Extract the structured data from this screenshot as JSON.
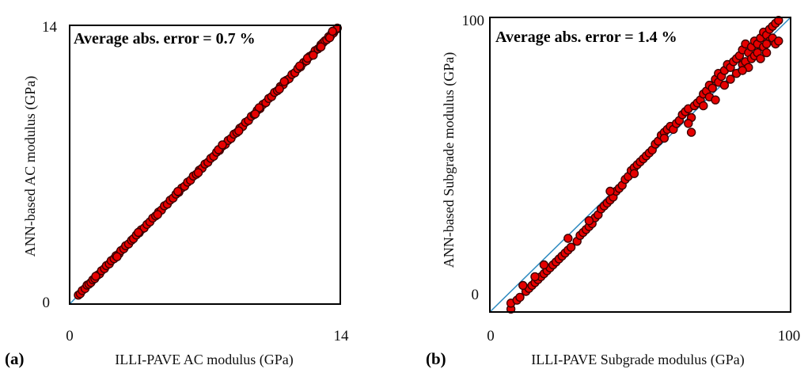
{
  "chart_data": [
    {
      "type": "scatter",
      "panel_label": "(a)",
      "annotation": "Average abs. error = 0.7 %",
      "xlabel": "ILLI-PAVE AC modulus (GPa)",
      "ylabel": "ANN-based AC modulus (GPa)",
      "xlim": [
        0,
        14
      ],
      "ylim": [
        0,
        14
      ],
      "x_ticks": [
        "0",
        "14"
      ],
      "y_ticks": [
        "0",
        "14"
      ],
      "reference_line": "y = x",
      "colors": {
        "points": "#e60000",
        "point_edge": "#3a0000",
        "line": "#2e8bc0",
        "frame": "#000000"
      },
      "series": [
        {
          "points": [
            [
              0.45,
              0.45
            ],
            [
              0.55,
              0.52
            ],
            [
              0.65,
              0.68
            ],
            [
              0.8,
              0.78
            ],
            [
              0.9,
              0.95
            ],
            [
              1.0,
              1.0
            ],
            [
              1.1,
              1.08
            ],
            [
              1.2,
              1.22
            ],
            [
              1.3,
              1.28
            ],
            [
              1.45,
              1.45
            ],
            [
              1.55,
              1.52
            ],
            [
              1.65,
              1.68
            ],
            [
              1.8,
              1.78
            ],
            [
              1.9,
              1.93
            ],
            [
              2.05,
              2.02
            ],
            [
              2.15,
              2.18
            ],
            [
              2.3,
              2.28
            ],
            [
              2.4,
              2.43
            ],
            [
              2.55,
              2.52
            ],
            [
              2.65,
              2.68
            ],
            [
              2.8,
              2.78
            ],
            [
              2.9,
              2.93
            ],
            [
              3.05,
              3.02
            ],
            [
              3.2,
              3.2
            ],
            [
              3.3,
              3.28
            ],
            [
              3.45,
              3.47
            ],
            [
              3.6,
              3.58
            ],
            [
              3.7,
              3.73
            ],
            [
              3.85,
              3.82
            ],
            [
              4.0,
              4.0
            ],
            [
              4.15,
              4.13
            ],
            [
              4.3,
              4.32
            ],
            [
              4.45,
              4.43
            ],
            [
              4.6,
              4.62
            ],
            [
              4.75,
              4.72
            ],
            [
              4.9,
              4.93
            ],
            [
              5.05,
              5.02
            ],
            [
              5.2,
              5.22
            ],
            [
              5.35,
              5.32
            ],
            [
              5.5,
              5.52
            ],
            [
              5.65,
              5.62
            ],
            [
              5.8,
              5.83
            ],
            [
              5.95,
              5.92
            ],
            [
              6.1,
              6.12
            ],
            [
              6.25,
              6.22
            ],
            [
              6.4,
              6.43
            ],
            [
              6.55,
              6.52
            ],
            [
              6.7,
              6.72
            ],
            [
              6.85,
              6.82
            ],
            [
              7.0,
              7.03
            ],
            [
              7.15,
              7.12
            ],
            [
              7.3,
              7.32
            ],
            [
              7.45,
              7.42
            ],
            [
              7.6,
              7.63
            ],
            [
              7.75,
              7.72
            ],
            [
              7.9,
              7.93
            ],
            [
              8.05,
              8.02
            ],
            [
              8.2,
              8.22
            ],
            [
              8.35,
              8.32
            ],
            [
              8.5,
              8.53
            ],
            [
              8.65,
              8.62
            ],
            [
              8.8,
              8.83
            ],
            [
              8.95,
              8.92
            ],
            [
              9.1,
              9.13
            ],
            [
              9.25,
              9.22
            ],
            [
              9.4,
              9.43
            ],
            [
              9.55,
              9.52
            ],
            [
              9.7,
              9.73
            ],
            [
              9.85,
              9.82
            ],
            [
              10.0,
              10.03
            ],
            [
              10.15,
              10.12
            ],
            [
              10.3,
              10.33
            ],
            [
              10.45,
              10.42
            ],
            [
              10.6,
              10.63
            ],
            [
              10.75,
              10.72
            ],
            [
              10.9,
              10.93
            ],
            [
              11.05,
              11.02
            ],
            [
              11.2,
              11.23
            ],
            [
              11.35,
              11.32
            ],
            [
              11.5,
              11.53
            ],
            [
              11.65,
              11.62
            ],
            [
              11.8,
              11.83
            ],
            [
              11.95,
              11.92
            ],
            [
              12.1,
              12.13
            ],
            [
              12.25,
              12.22
            ],
            [
              12.4,
              12.43
            ],
            [
              12.55,
              12.52
            ],
            [
              12.7,
              12.73
            ],
            [
              12.85,
              12.82
            ],
            [
              13.0,
              13.03
            ],
            [
              13.1,
              13.12
            ],
            [
              13.2,
              13.22
            ],
            [
              13.3,
              13.28
            ],
            [
              13.4,
              13.43
            ],
            [
              13.5,
              13.47
            ],
            [
              13.55,
              13.58
            ],
            [
              13.65,
              13.62
            ],
            [
              13.7,
              13.73
            ],
            [
              13.8,
              13.8
            ],
            [
              13.85,
              13.86
            ],
            [
              1.35,
              1.4
            ],
            [
              2.45,
              2.38
            ],
            [
              3.55,
              3.6
            ],
            [
              4.55,
              4.5
            ],
            [
              5.6,
              5.66
            ],
            [
              6.65,
              6.6
            ],
            [
              7.7,
              7.76
            ],
            [
              8.75,
              8.7
            ],
            [
              9.8,
              9.86
            ],
            [
              10.85,
              10.8
            ],
            [
              11.9,
              11.96
            ],
            [
              12.95,
              12.9
            ],
            [
              13.45,
              13.38
            ],
            [
              7.9,
              8.0
            ],
            [
              9.6,
              9.55
            ],
            [
              11.1,
              11.18
            ],
            [
              12.3,
              12.35
            ],
            [
              12.6,
              12.5
            ],
            [
              13.0,
              12.92
            ],
            [
              13.6,
              13.7
            ]
          ]
        }
      ]
    },
    {
      "type": "scatter",
      "panel_label": "(b)",
      "annotation": "Average abs. error = 1.4 %",
      "xlabel": "ILLI-PAVE Subgrade modulus (GPa)",
      "ylabel": "ANN-based Subgrade modulus (GPa)",
      "xlim": [
        0,
        100
      ],
      "ylim": [
        0,
        100
      ],
      "x_ticks": [
        "0",
        "100"
      ],
      "y_ticks": [
        "0",
        "100"
      ],
      "reference_line": "y = x",
      "colors": {
        "points": "#e60000",
        "point_edge": "#3a0000",
        "line": "#2e8bc0",
        "frame": "#000000"
      },
      "series": [
        {
          "points": [
            [
              7,
              1
            ],
            [
              7,
              3
            ],
            [
              9,
              4
            ],
            [
              10,
              5
            ],
            [
              12,
              7
            ],
            [
              13,
              8
            ],
            [
              14,
              9
            ],
            [
              15,
              10
            ],
            [
              16,
              11
            ],
            [
              17,
              12
            ],
            [
              18,
              13
            ],
            [
              19,
              14
            ],
            [
              20,
              15
            ],
            [
              21,
              16
            ],
            [
              22,
              17
            ],
            [
              23,
              18
            ],
            [
              24,
              19
            ],
            [
              25,
              20
            ],
            [
              26,
              21
            ],
            [
              27,
              22
            ],
            [
              29,
              24
            ],
            [
              30,
              26
            ],
            [
              31,
              27
            ],
            [
              32,
              28
            ],
            [
              33,
              29
            ],
            [
              34,
              30
            ],
            [
              35,
              32
            ],
            [
              36,
              33
            ],
            [
              37,
              35
            ],
            [
              38,
              36
            ],
            [
              39,
              37
            ],
            [
              40,
              38
            ],
            [
              41,
              39
            ],
            [
              42,
              41
            ],
            [
              43,
              42
            ],
            [
              44,
              43
            ],
            [
              45,
              45
            ],
            [
              46,
              46
            ],
            [
              47,
              48
            ],
            [
              48,
              49
            ],
            [
              49,
              50
            ],
            [
              50,
              51
            ],
            [
              51,
              52
            ],
            [
              52,
              53
            ],
            [
              53,
              54
            ],
            [
              54,
              55
            ],
            [
              55,
              57
            ],
            [
              56,
              58
            ],
            [
              57,
              60
            ],
            [
              58,
              61
            ],
            [
              59,
              62
            ],
            [
              60,
              63
            ],
            [
              61,
              62
            ],
            [
              62,
              64
            ],
            [
              63,
              65
            ],
            [
              64,
              67
            ],
            [
              65,
              68
            ],
            [
              66,
              69
            ],
            [
              67,
              61
            ],
            [
              67,
              66
            ],
            [
              68,
              70
            ],
            [
              69,
              71
            ],
            [
              70,
              72
            ],
            [
              71,
              70
            ],
            [
              71,
              74
            ],
            [
              72,
              75
            ],
            [
              73,
              73
            ],
            [
              73,
              77
            ],
            [
              74,
              76
            ],
            [
              75,
              79
            ],
            [
              76,
              78
            ],
            [
              76,
              81
            ],
            [
              77,
              80
            ],
            [
              78,
              82
            ],
            [
              78,
              77
            ],
            [
              79,
              84
            ],
            [
              80,
              83
            ],
            [
              80,
              79
            ],
            [
              81,
              85
            ],
            [
              82,
              81
            ],
            [
              82,
              86
            ],
            [
              83,
              87
            ],
            [
              84,
              84
            ],
            [
              84,
              89
            ],
            [
              85,
              85
            ],
            [
              85,
              91
            ],
            [
              86,
              88
            ],
            [
              86,
              83
            ],
            [
              87,
              90
            ],
            [
              87,
              86
            ],
            [
              88,
              92
            ],
            [
              88,
              87
            ],
            [
              89,
              91
            ],
            [
              89,
              88
            ],
            [
              90,
              93
            ],
            [
              90,
              86
            ],
            [
              91,
              95
            ],
            [
              91,
              90
            ],
            [
              92,
              94
            ],
            [
              92,
              88
            ],
            [
              93,
              92
            ],
            [
              93,
              96
            ],
            [
              94,
              97
            ],
            [
              94,
              93
            ],
            [
              95,
              98
            ],
            [
              95,
              91
            ],
            [
              96,
              99
            ],
            [
              96,
              92
            ],
            [
              92,
              91
            ],
            [
              84,
              82
            ],
            [
              75,
              72
            ],
            [
              66,
              64
            ],
            [
              58,
              59
            ],
            [
              48,
              47
            ],
            [
              40,
              41
            ],
            [
              33,
              31
            ],
            [
              26,
              25
            ],
            [
              18,
              16
            ],
            [
              11,
              9
            ],
            [
              15,
              12
            ]
          ]
        }
      ]
    }
  ]
}
